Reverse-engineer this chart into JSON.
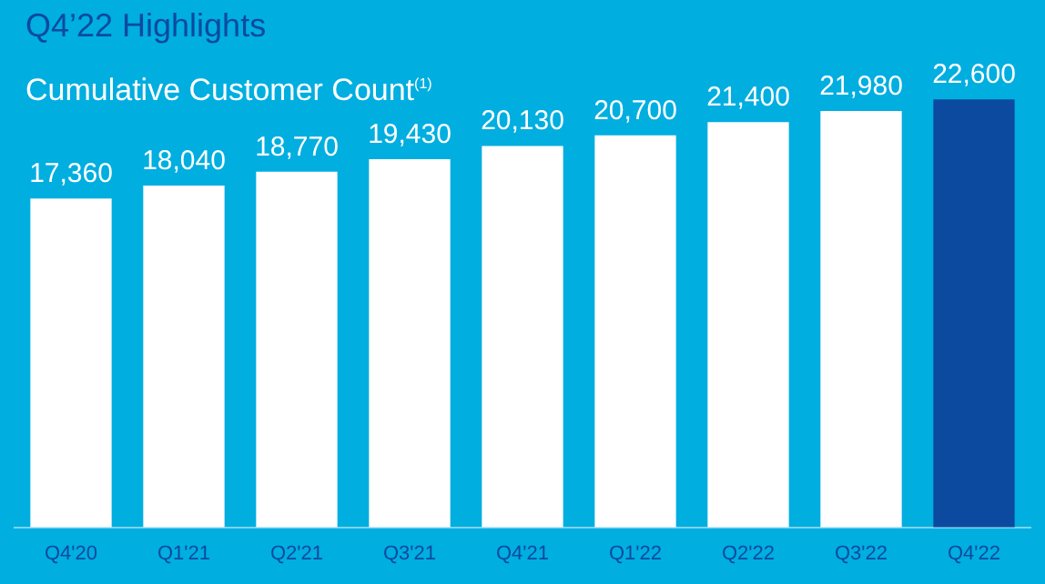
{
  "chart_data": {
    "type": "bar",
    "title": "Q4’22 Highlights",
    "subtitle": "Cumulative Customer Count$^{(1)}$",
    "categories": [
      "Q4'20",
      "Q1'21",
      "Q2'21",
      "Q3'21",
      "Q4'21",
      "Q1'22",
      "Q2'22",
      "Q3'22",
      "Q4'22"
    ],
    "values": [
      17360,
      18040,
      18770,
      19430,
      20130,
      20700,
      21400,
      21980,
      22600
    ],
    "value_labels": [
      "17,360",
      "18,040",
      "18,770",
      "19,430",
      "20,130",
      "20,700",
      "21,400",
      "21,980",
      "22,600"
    ],
    "colors": [
      "#ffffff",
      "#ffffff",
      "#ffffff",
      "#ffffff",
      "#ffffff",
      "#ffffff",
      "#ffffff",
      "#ffffff",
      "#0b4a9e"
    ],
    "tick_labels": "x",
    "grid": false,
    "legend": false
  }
}
